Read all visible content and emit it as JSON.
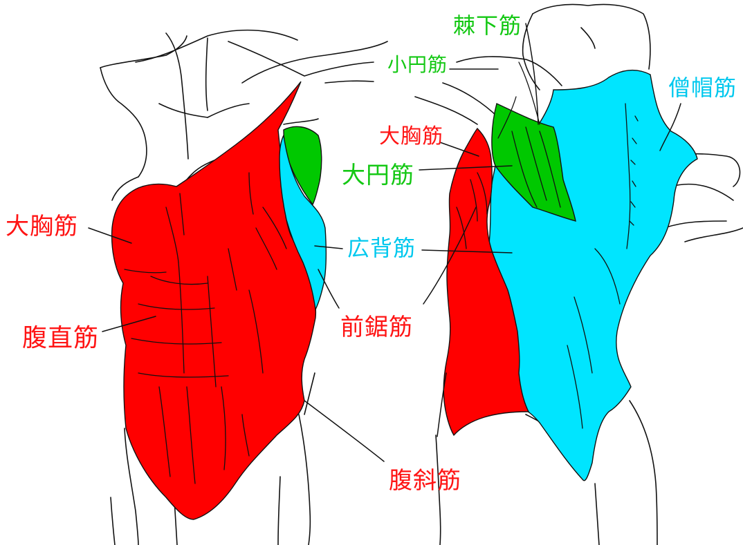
{
  "labels": {
    "front_pectoralis_major": "大胸筋",
    "front_rectus_abdominis": "腹直筋",
    "serratus_anterior": "前鋸筋",
    "external_oblique": "腹斜筋",
    "latissimus_dorsi": "広背筋",
    "back_pectoralis_major": "大胸筋",
    "teres_major": "大円筋",
    "teres_minor": "小円筋",
    "infraspinatus": "棘下筋",
    "trapezius": "僧帽筋"
  },
  "colors": {
    "muscle_red": "#ff0000",
    "muscle_green": "#00c800",
    "muscle_cyan": "#00e5ff",
    "outline": "#111111",
    "label_red": "#ff1414",
    "label_green": "#14c814",
    "label_cyan": "#00c8ee"
  }
}
